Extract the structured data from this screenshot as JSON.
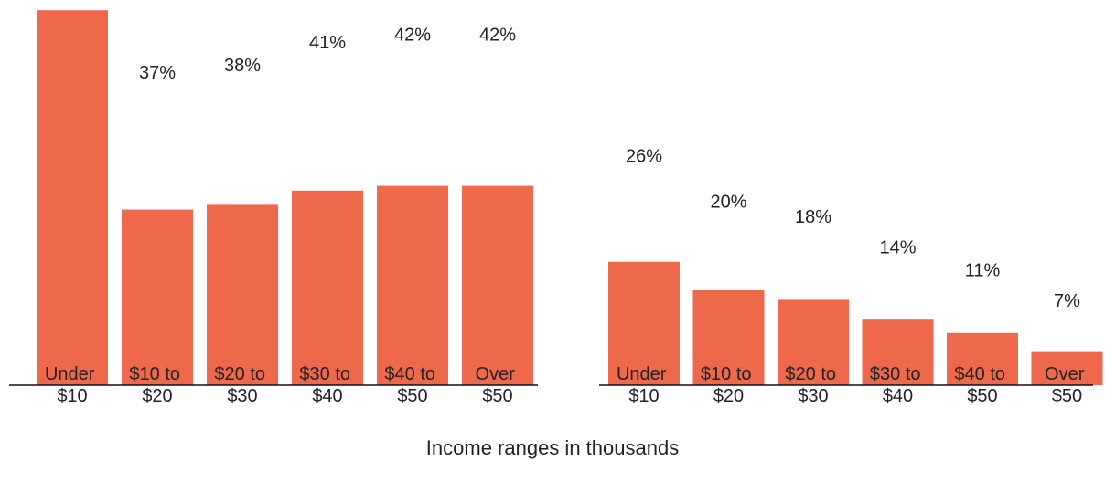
{
  "chart_data": [
    {
      "type": "bar",
      "categories": [
        "Under $10",
        "$10 to $20",
        "$20 to $30",
        "$30 to $40",
        "$40 to $50",
        "Over $50"
      ],
      "values": [
        79,
        37,
        38,
        41,
        42,
        42
      ],
      "value_labels": [
        null,
        "37%",
        "38%",
        "41%",
        "42%",
        "42%"
      ],
      "color": "#ee684c",
      "ylim": [
        0,
        80
      ]
    },
    {
      "type": "bar",
      "categories": [
        "Under $10",
        "$10 to $20",
        "$20 to $30",
        "$30 to $40",
        "$40 to $50",
        "Over $50"
      ],
      "values": [
        26,
        20,
        18,
        14,
        11,
        7
      ],
      "value_labels": [
        "26%",
        "20%",
        "18%",
        "14%",
        "11%",
        "7%"
      ],
      "color": "#ee684c",
      "ylim": [
        0,
        80
      ]
    }
  ],
  "x_axis_label": "Income ranges in thousands"
}
